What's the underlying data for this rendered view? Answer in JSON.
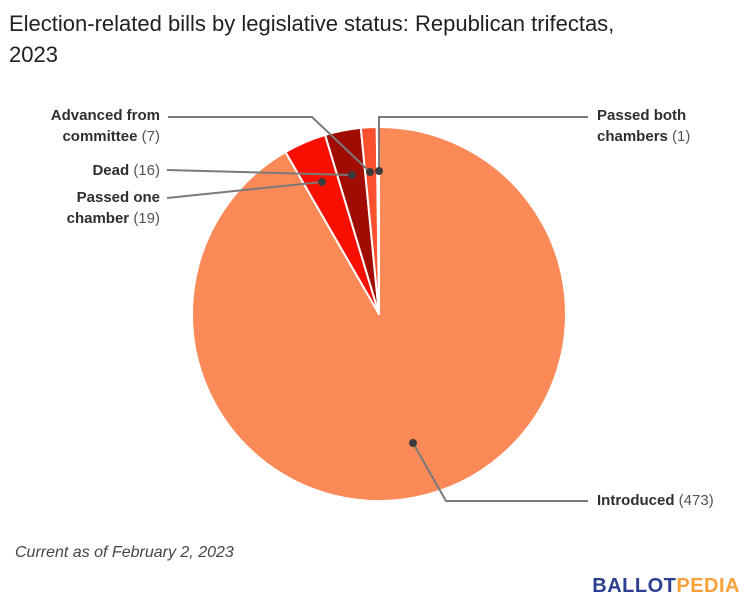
{
  "title": "Election-related bills by legislative status: Republican trifectas, 2023",
  "footnote": "Current as of February 2, 2023",
  "logo": {
    "part1": "BALLOT",
    "part2": "PEDIA",
    "ballot_color": "#2C3E90",
    "pedia_color": "#F9A13B"
  },
  "chart_data": {
    "type": "pie",
    "title": "Election-related bills by legislative status: Republican trifectas, 2023",
    "total": 516,
    "start_angle_deg": 0,
    "direction": "clockwise",
    "slice_border_color": "#ffffff",
    "slices": [
      {
        "label": "Introduced",
        "value": 473,
        "color": "#FC8A59"
      },
      {
        "label": "Passed one chamber",
        "value": 19,
        "color": "#F90F00"
      },
      {
        "label": "Dead",
        "value": 16,
        "color": "#A00C02"
      },
      {
        "label": "Advanced from committee",
        "value": 7,
        "color": "#FB512E"
      },
      {
        "label": "Passed both chambers",
        "value": 1,
        "color": "#FFB3A6"
      }
    ],
    "annotations": [
      "Advanced from committee (7)",
      "Dead (16)",
      "Passed one chamber (19)",
      "Passed both chambers (1)",
      "Introduced (473)"
    ],
    "legend_position": "callouts"
  },
  "labels": {
    "advanced": {
      "name": "Advanced from committee",
      "count": "(7)"
    },
    "dead": {
      "name": "Dead",
      "count": "(16)"
    },
    "passed_one": {
      "name": "Passed one chamber",
      "count": "(19)"
    },
    "passed_both": {
      "name": "Passed both chambers",
      "count": "(1)"
    },
    "introduced": {
      "name": "Introduced",
      "count": "(473)"
    }
  },
  "colors": {
    "leader_line": "#7a7a7a",
    "dot": "#3c3c3c",
    "title_text": "#212121",
    "label_text": "#2f2f2f",
    "count_text": "#545454"
  }
}
